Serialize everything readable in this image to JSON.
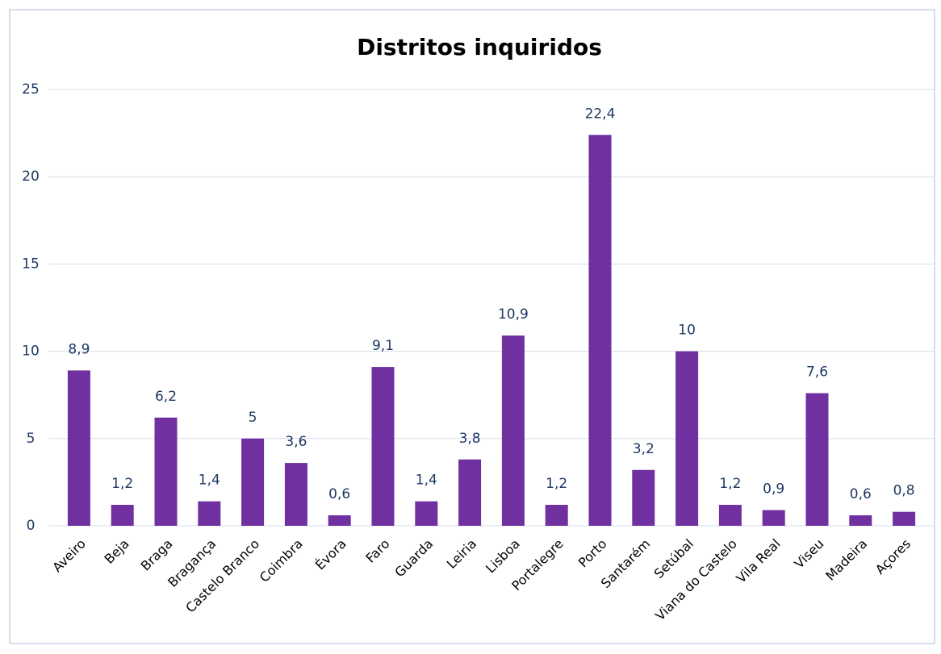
{
  "chart_data": {
    "type": "bar",
    "title": "Distritos inquiridos",
    "categories": [
      "Aveiro",
      "Beja",
      "Braga",
      "Bragança",
      "Castelo Branco",
      "Coimbra",
      "Évora",
      "Faro",
      "Guarda",
      "Leiria",
      "Lisboa",
      "Portalegre",
      "Porto",
      "Santarém",
      "Setúbal",
      "Viana do Castelo",
      "Vila Real",
      "Viseu",
      "Madeira",
      "Açores"
    ],
    "values": [
      8.9,
      1.2,
      6.2,
      1.4,
      5,
      3.6,
      0.6,
      9.1,
      1.4,
      3.8,
      10.9,
      1.2,
      22.4,
      3.2,
      10,
      1.2,
      0.9,
      7.6,
      0.6,
      0.8
    ],
    "value_labels": [
      "8,9",
      "1,2",
      "6,2",
      "1,4",
      "5",
      "3,6",
      "0,6",
      "9,1",
      "1,4",
      "3,8",
      "10,9",
      "1,2",
      "22,4",
      "3,2",
      "10",
      "1,2",
      "0,9",
      "7,6",
      "0,6",
      "0,8"
    ],
    "color": "#7030a0",
    "ylim": [
      0,
      25
    ],
    "yticks": [
      0,
      5,
      10,
      15,
      20,
      25
    ],
    "grid": true
  }
}
